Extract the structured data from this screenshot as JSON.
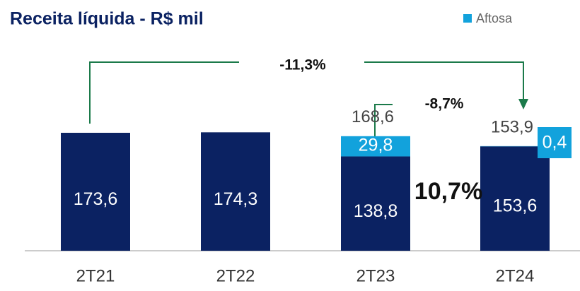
{
  "chart_data": {
    "type": "bar",
    "stacked": true,
    "title": "Receita líquida - R$ mil",
    "categories": [
      "2T21",
      "2T22",
      "2T23",
      "2T24"
    ],
    "series": [
      {
        "color": "#0b2262",
        "values": [
          173.6,
          174.3,
          138.8,
          153.6
        ],
        "value_labels": [
          "173,6",
          "174,3",
          "138,8",
          "153,6"
        ]
      },
      {
        "name": "Aftosa",
        "color": "#12a2dc",
        "values": [
          null,
          null,
          29.8,
          0.4
        ],
        "value_labels": [
          null,
          null,
          "29,8",
          "0,4"
        ]
      }
    ],
    "totals": [
      null,
      null,
      168.6,
      153.9
    ],
    "total_labels": [
      null,
      null,
      "168,6",
      "153,9"
    ],
    "annotations": [
      "-11,3%",
      "-8,7%",
      "10,7%"
    ]
  }
}
